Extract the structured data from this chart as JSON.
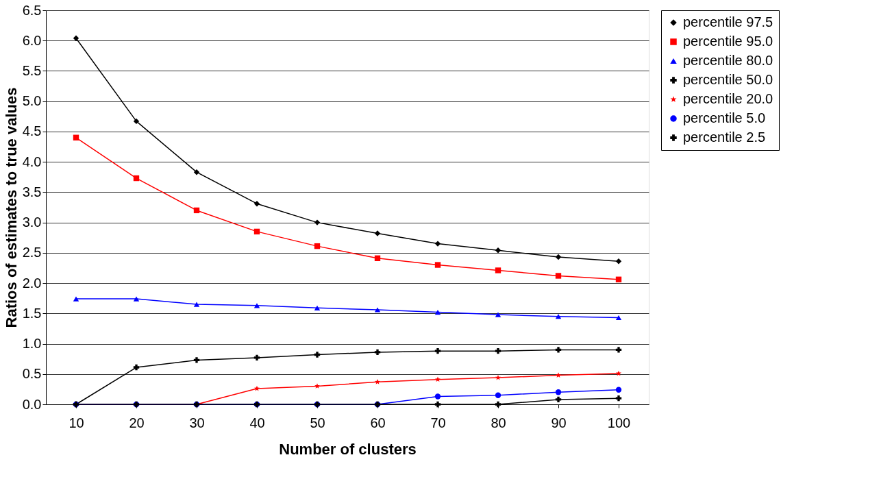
{
  "chart_data": {
    "type": "line",
    "xlabel": "Number of clusters",
    "ylabel": "Ratios of estimates to true values",
    "categories": [
      "10",
      "20",
      "30",
      "40",
      "50",
      "60",
      "70",
      "80",
      "90",
      "100"
    ],
    "series": [
      {
        "name": "percentile 97.5",
        "color": "#000000",
        "marker": "diamond",
        "values": [
          6.04,
          4.67,
          3.83,
          3.31,
          3.0,
          2.82,
          2.65,
          2.54,
          2.43,
          2.36
        ]
      },
      {
        "name": "percentile 95.0",
        "color": "#ff0000",
        "marker": "square",
        "values": [
          4.4,
          3.73,
          3.2,
          2.85,
          2.61,
          2.41,
          2.3,
          2.21,
          2.12,
          2.06
        ]
      },
      {
        "name": "percentile 80.0",
        "color": "#0000ff",
        "marker": "triangle",
        "values": [
          1.74,
          1.74,
          1.65,
          1.63,
          1.59,
          1.56,
          1.52,
          1.48,
          1.45,
          1.43
        ]
      },
      {
        "name": "percentile 50.0",
        "color": "#000000",
        "marker": "cross",
        "values": [
          0,
          0.61,
          0.73,
          0.77,
          0.82,
          0.86,
          0.88,
          0.88,
          0.9,
          0.9
        ]
      },
      {
        "name": "percentile 20.0",
        "color": "#ff0000",
        "marker": "star",
        "values": [
          0,
          0,
          0,
          0.26,
          0.3,
          0.37,
          0.41,
          0.44,
          0.48,
          0.51
        ]
      },
      {
        "name": "percentile 5.0",
        "color": "#0000ff",
        "marker": "circle",
        "values": [
          0,
          0,
          0,
          0,
          0,
          0,
          0.13,
          0.15,
          0.2,
          0.24
        ]
      },
      {
        "name": "percentile 2.5",
        "color": "#000000",
        "marker": "cross",
        "values": [
          0,
          0,
          0,
          0,
          0,
          0,
          0,
          0,
          0.08,
          0.1
        ]
      }
    ],
    "ylim": [
      0,
      6.5
    ],
    "yticks": [
      {
        "value": 0,
        "label": "0.0"
      },
      {
        "value": 0.5,
        "label": "0.5"
      },
      {
        "value": 1,
        "label": "1.0"
      },
      {
        "value": 1.5,
        "label": "1.5"
      },
      {
        "value": 2,
        "label": "2.0"
      },
      {
        "value": 2.5,
        "label": "2.5"
      },
      {
        "value": 3,
        "label": "3.0"
      },
      {
        "value": 3.5,
        "label": "3.5"
      },
      {
        "value": 4,
        "label": "4.0"
      },
      {
        "value": 4.5,
        "label": "4.5"
      },
      {
        "value": 5,
        "label": "5.0"
      },
      {
        "value": 5.5,
        "label": "5.5"
      },
      {
        "value": 6,
        "label": "6.0"
      },
      {
        "value": 6.5,
        "label": "6.5"
      }
    ],
    "grid": "y",
    "legend": "right",
    "line_style": "solid"
  }
}
